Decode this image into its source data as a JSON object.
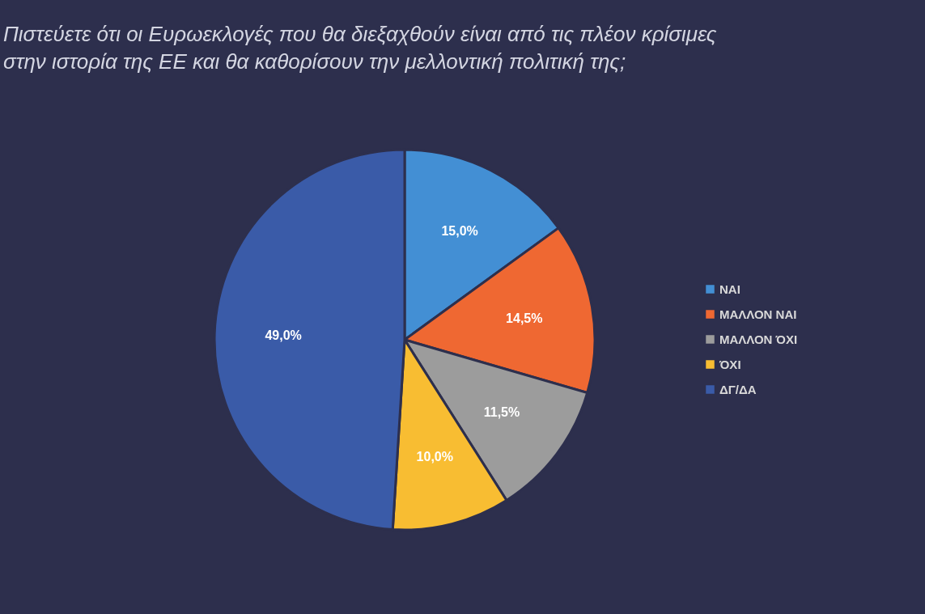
{
  "chart_data": {
    "type": "pie",
    "title": "Πιστεύετε ότι οι Ευρωεκλογές που θα διεξαχθούν είναι από τις πλέον κρίσιμες\nστην ιστορία της ΕΕ και θα καθορίσουν την μελλοντική πολιτική της;",
    "categories": [
      "ΝΑΙ",
      "ΜΑΛΛΟΝ ΝΑΙ",
      "ΜΑΛΛΟΝ ΌΧΙ",
      "ΌΧΙ",
      "ΔΓ/ΔΑ"
    ],
    "values": [
      15.0,
      14.5,
      11.5,
      10.0,
      49.0
    ],
    "colors": [
      "#438fd4",
      "#ef6832",
      "#9c9c9c",
      "#f8bd32",
      "#3a5ba8"
    ],
    "value_labels": [
      "15,0%",
      "14,5%",
      "11,5%",
      "10,0%",
      "49,0%"
    ],
    "legend": "right"
  }
}
